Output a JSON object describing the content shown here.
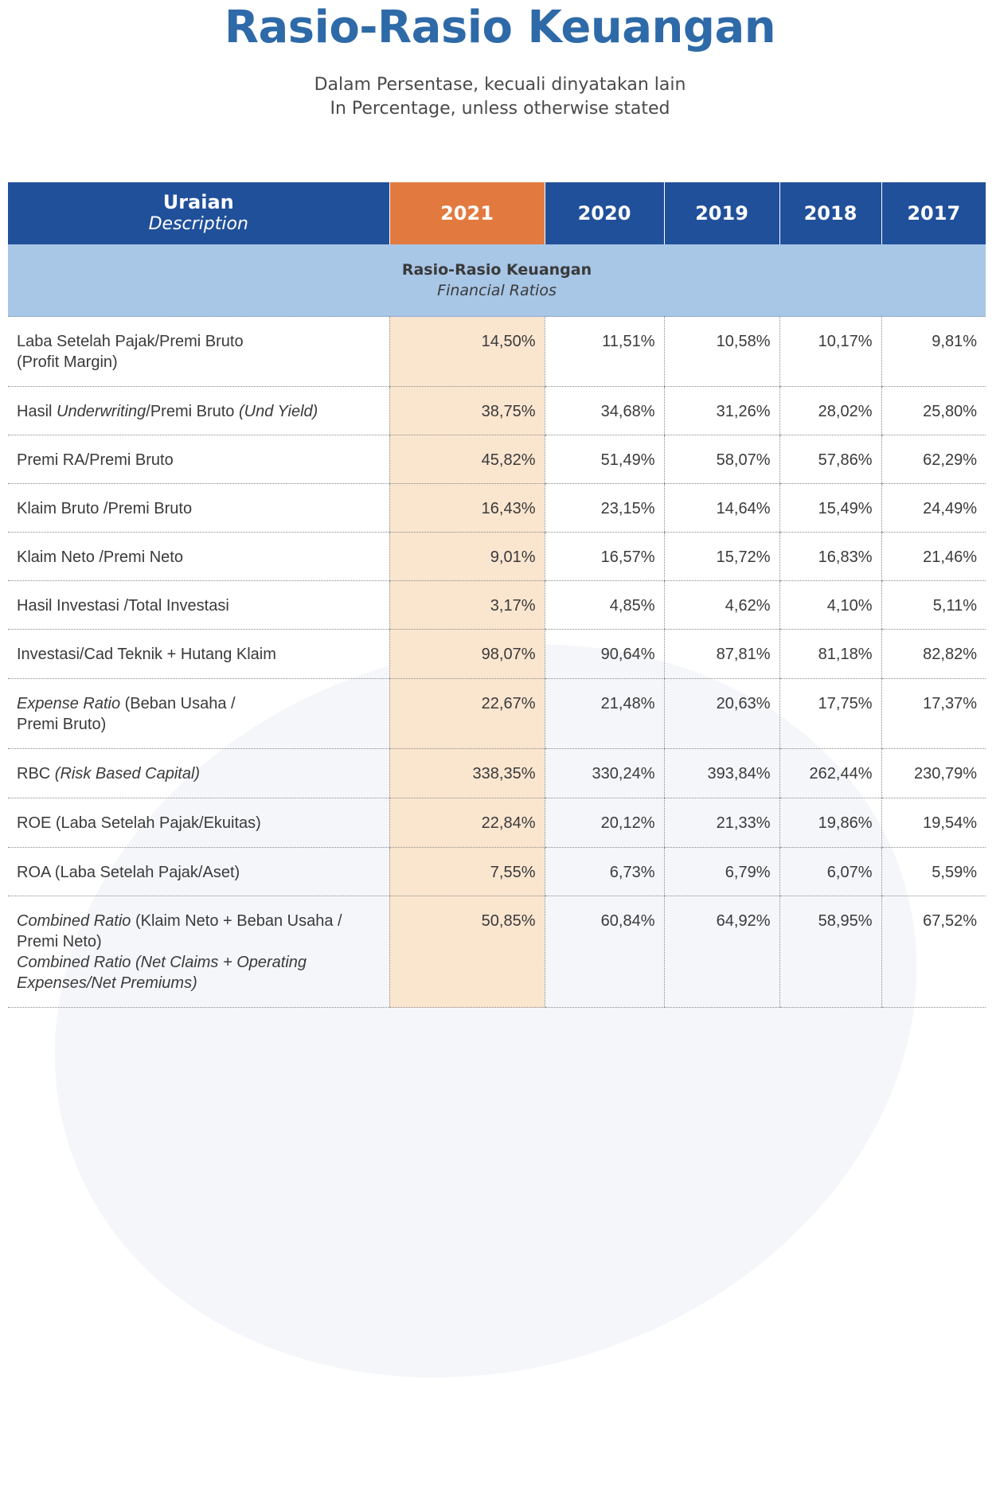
{
  "title": "Rasio-Rasio Keuangan",
  "subtitle": {
    "line1": "Dalam Persentase, kecuali dinyatakan lain",
    "line2": "In Percentage, unless otherwise stated"
  },
  "table": {
    "header": {
      "desc_main": "Uraian",
      "desc_sub": "Description",
      "years": [
        "2021",
        "2020",
        "2019",
        "2018",
        "2017"
      ],
      "highlight_color": "#e27a3f",
      "header_color": "#21509a"
    },
    "section": {
      "main": "Rasio-Rasio Keuangan",
      "sub": "Financial Ratios"
    },
    "rows": [
      {
        "l1": "Laba Setelah Pajak/Premi Bruto",
        "l2": "(Profit Margin)",
        "values": [
          "14,50%",
          "11,51%",
          "10,58%",
          "10,17%",
          "9,81%"
        ]
      },
      {
        "p1": "Hasil ",
        "p2": "Underwriting",
        "p3": "/Premi Bruto ",
        "p4": "(Und Yield)",
        "values": [
          "38,75%",
          "34,68%",
          "31,26%",
          "28,02%",
          "25,80%"
        ]
      },
      {
        "label": "Premi RA/Premi Bruto",
        "values": [
          "45,82%",
          "51,49%",
          "58,07%",
          "57,86%",
          "62,29%"
        ]
      },
      {
        "label": "Klaim Bruto /Premi Bruto",
        "values": [
          "16,43%",
          "23,15%",
          "14,64%",
          "15,49%",
          "24,49%"
        ]
      },
      {
        "label": "Klaim Neto /Premi Neto",
        "values": [
          "9,01%",
          "16,57%",
          "15,72%",
          "16,83%",
          "21,46%"
        ]
      },
      {
        "label": "Hasil Investasi /Total Investasi",
        "values": [
          "3,17%",
          "4,85%",
          "4,62%",
          "4,10%",
          "5,11%"
        ]
      },
      {
        "label": "Investasi/Cad Teknik + Hutang Klaim",
        "values": [
          "98,07%",
          "90,64%",
          "87,81%",
          "81,18%",
          "82,82%"
        ]
      },
      {
        "p1": "Expense Ratio",
        "p2": " (Beban Usaha /",
        "l2": "Premi Bruto)",
        "values": [
          "22,67%",
          "21,48%",
          "20,63%",
          "17,75%",
          "17,37%"
        ]
      },
      {
        "p1": "RBC ",
        "p2": "(Risk Based Capital)",
        "values": [
          "338,35%",
          "330,24%",
          "393,84%",
          "262,44%",
          "230,79%"
        ]
      },
      {
        "label": "ROE (Laba Setelah Pajak/Ekuitas)",
        "values": [
          "22,84%",
          "20,12%",
          "21,33%",
          "19,86%",
          "19,54%"
        ]
      },
      {
        "label": "ROA (Laba Setelah Pajak/Aset)",
        "values": [
          "7,55%",
          "6,73%",
          "6,79%",
          "6,07%",
          "5,59%"
        ]
      },
      {
        "p1": "Combined Ratio",
        "p2": " (Klaim Neto + Beban Usaha /",
        "l2": "Premi Neto)",
        "l3": "Combined Ratio (Net Claims + Operating",
        "l4": "Expenses/Net Premiums)",
        "values": [
          "50,85%",
          "60,84%",
          "64,92%",
          "58,95%",
          "67,52%"
        ]
      }
    ]
  }
}
